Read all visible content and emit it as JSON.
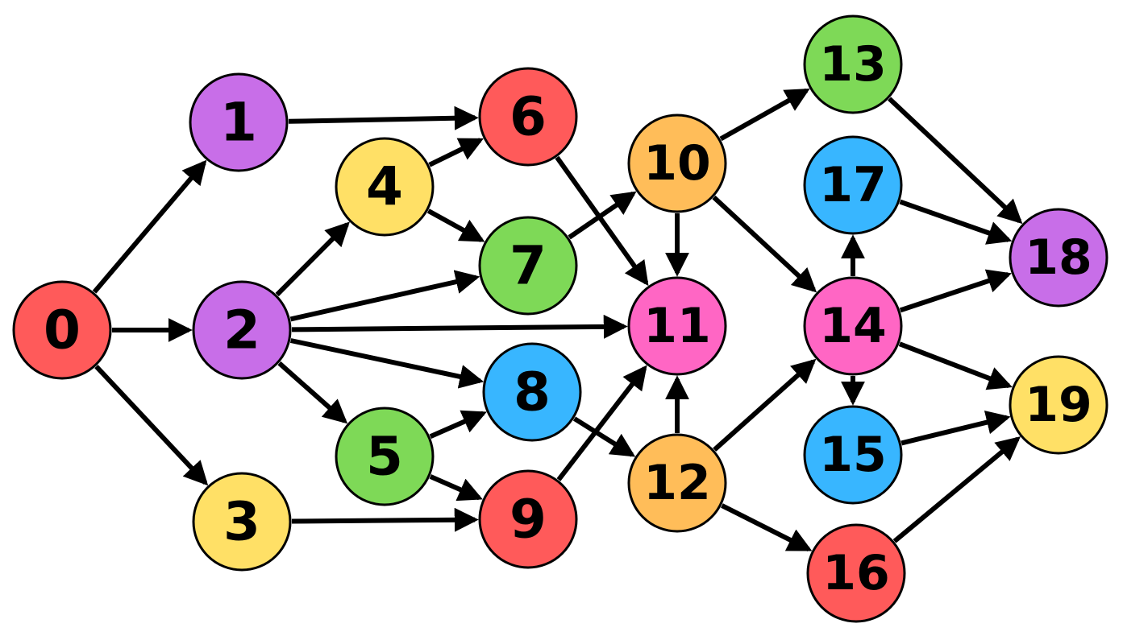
{
  "palette": {
    "red": "#FF5A5A",
    "purple": "#C86EE8",
    "yellow": "#FFE066",
    "green": "#7ED957",
    "blue": "#38B6FF",
    "orange": "#FFBD59",
    "pink": "#FF66C4",
    "edge": "#000000",
    "outline": "#000000"
  },
  "nodes": [
    {
      "id": "0",
      "label": "0",
      "color": "red"
    },
    {
      "id": "1",
      "label": "1",
      "color": "purple"
    },
    {
      "id": "2",
      "label": "2",
      "color": "purple"
    },
    {
      "id": "3",
      "label": "3",
      "color": "yellow"
    },
    {
      "id": "4",
      "label": "4",
      "color": "yellow"
    },
    {
      "id": "5",
      "label": "5",
      "color": "green"
    },
    {
      "id": "6",
      "label": "6",
      "color": "red"
    },
    {
      "id": "7",
      "label": "7",
      "color": "green"
    },
    {
      "id": "8",
      "label": "8",
      "color": "blue"
    },
    {
      "id": "9",
      "label": "9",
      "color": "red"
    },
    {
      "id": "10",
      "label": "10",
      "color": "orange"
    },
    {
      "id": "11",
      "label": "11",
      "color": "pink"
    },
    {
      "id": "12",
      "label": "12",
      "color": "orange"
    },
    {
      "id": "13",
      "label": "13",
      "color": "green"
    },
    {
      "id": "14",
      "label": "14",
      "color": "pink"
    },
    {
      "id": "15",
      "label": "15",
      "color": "blue"
    },
    {
      "id": "16",
      "label": "16",
      "color": "red"
    },
    {
      "id": "17",
      "label": "17",
      "color": "blue"
    },
    {
      "id": "18",
      "label": "18",
      "color": "purple"
    },
    {
      "id": "19",
      "label": "19",
      "color": "yellow"
    }
  ],
  "edges": [
    {
      "from": "0",
      "to": "1"
    },
    {
      "from": "0",
      "to": "2"
    },
    {
      "from": "0",
      "to": "3"
    },
    {
      "from": "1",
      "to": "6"
    },
    {
      "from": "2",
      "to": "4"
    },
    {
      "from": "2",
      "to": "5"
    },
    {
      "from": "2",
      "to": "7"
    },
    {
      "from": "2",
      "to": "8"
    },
    {
      "from": "2",
      "to": "11"
    },
    {
      "from": "3",
      "to": "9"
    },
    {
      "from": "4",
      "to": "6"
    },
    {
      "from": "4",
      "to": "7"
    },
    {
      "from": "5",
      "to": "8"
    },
    {
      "from": "5",
      "to": "9"
    },
    {
      "from": "6",
      "to": "11"
    },
    {
      "from": "7",
      "to": "10"
    },
    {
      "from": "8",
      "to": "12"
    },
    {
      "from": "9",
      "to": "11"
    },
    {
      "from": "10",
      "to": "11"
    },
    {
      "from": "10",
      "to": "13"
    },
    {
      "from": "10",
      "to": "14"
    },
    {
      "from": "12",
      "to": "11"
    },
    {
      "from": "12",
      "to": "14"
    },
    {
      "from": "12",
      "to": "16"
    },
    {
      "from": "13",
      "to": "18"
    },
    {
      "from": "14",
      "to": "15"
    },
    {
      "from": "14",
      "to": "17"
    },
    {
      "from": "14",
      "to": "18"
    },
    {
      "from": "14",
      "to": "19"
    },
    {
      "from": "15",
      "to": "19"
    },
    {
      "from": "16",
      "to": "19"
    },
    {
      "from": "17",
      "to": "18"
    }
  ]
}
